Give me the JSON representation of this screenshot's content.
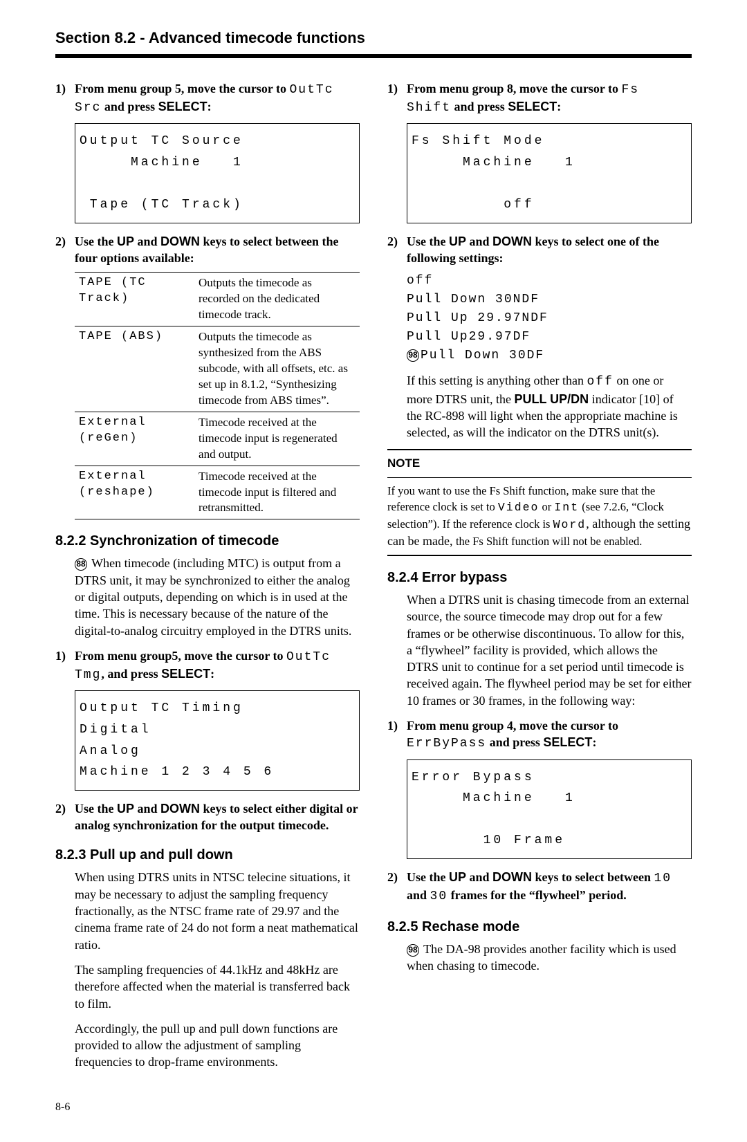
{
  "header": "Section 8.2 - Advanced timecode functions",
  "left": {
    "step1": {
      "num": "1)",
      "text_a": "From menu group 5, move the cursor to ",
      "mono": "OutTc Src",
      "text_b": " and press ",
      "sans": "SELECT",
      "text_c": ":"
    },
    "lcd1": "Output TC Source\n     Machine   1\n\n Tape (TC Track)",
    "step2": {
      "num": "2)",
      "text_a": "Use the ",
      "sans1": "UP",
      "text_b": " and ",
      "sans2": "DOWN",
      "text_c": " keys to select between the four options available:"
    },
    "opts": [
      {
        "label": "TAPE (TC Track)",
        "desc": "Outputs the timecode as recorded on the dedicated timecode track."
      },
      {
        "label": "TAPE (ABS)",
        "desc": "Outputs the timecode as synthesized from the ABS subcode, with all offsets, etc. as set up in 8.1.2, “Synthesizing timecode from ABS times”."
      },
      {
        "label": "External (reGen)",
        "desc": "Timecode received at the timecode input is regenerated and output."
      },
      {
        "label": "External (reshape)",
        "desc": "Timecode received at the timecode input is filtered and retransmitted."
      }
    ],
    "sub822": "8.2.2  Synchronization of timecode",
    "badge88": "88",
    "p822": " When timecode (including MTC) is output from a DTRS unit, it may be synchronized to either the analog or digital outputs, depending on which is in used at the time. This is necessary because of the nature of the digital-to-analog circuitry employed in the DTRS units.",
    "step3": {
      "num": "1)",
      "text_a": "From menu group5, move the cursor to ",
      "mono": "OutTc Tmg",
      "text_b": ", and press ",
      "sans": "SELECT",
      "text_c": ":"
    },
    "lcd2": "Output TC Timing\nDigital\nAnalog\nMachine 1 2 3 4 5 6",
    "step4": {
      "num": "2)",
      "text_a": "Use the ",
      "sans1": "UP",
      "text_b": " and ",
      "sans2": "DOWN",
      "text_c": " keys to select either digital or analog synchronization for the output timecode."
    },
    "sub823": "8.2.3  Pull up and pull down",
    "p823a": "When using DTRS units in NTSC telecine situations, it may be necessary to adjust the sampling frequency fractionally, as the NTSC frame rate of 29.97 and the cinema frame rate of 24 do not form a neat mathematical ratio.",
    "p823b": "The sampling frequencies of 44.1kHz and 48kHz are therefore affected when the material is transferred back to film.",
    "p823c": "Accordingly, the pull up and pull down functions are provided to allow the adjustment of sampling frequencies to drop-frame environments."
  },
  "right": {
    "step1": {
      "num": "1)",
      "text_a": "From menu group 8, move the cursor to ",
      "mono": "Fs Shift",
      "text_b": " and press ",
      "sans": "SELECT",
      "text_c": ":"
    },
    "lcd1": "Fs Shift Mode\n     Machine   1\n\n         off",
    "step2": {
      "num": "2)",
      "text_a": "Use the ",
      "sans1": "UP",
      "text_b": " and ",
      "sans2": "DOWN",
      "text_c": " keys to select one of the following settings:"
    },
    "settings_a": "off\nPull Down 30NDF\nPull Up 29.97NDF\nPull Up29.97DF",
    "badge98": "98",
    "settings_b": "Pull Down 30DF",
    "p_after_a": "If this setting is anything other than ",
    "mono_off": "off",
    "p_after_b": " on one or more DTRS unit, the ",
    "sans_pull": "PULL UP/DN",
    "p_after_c": " indicator [10] of the RC-898 will light when the appropriate machine is selected, as will the indicator on the DTRS unit(s).",
    "note_head": "NOTE",
    "note_a": "If you want to use the Fs Shift function, make sure that the reference clock is set to ",
    "note_mono1": "Video",
    "note_b": " or ",
    "note_mono2": "Int",
    "note_c": " (see 7.2.6, “Clock selection”). If the reference clock is ",
    "note_mono3": "Word",
    "note_larger": ", although the setting can be made, ",
    "note_d": "the Fs Shift function will not be enabled.",
    "sub824": "8.2.4  Error bypass",
    "p824": "When a DTRS unit is chasing timecode from an external source, the source timecode may drop out for a few frames or be otherwise discontinuous. To allow for this, a “flywheel” facility is provided, which allows the DTRS unit to continue for a set period until timecode is received again. The flywheel period may be set for either 10 frames or 30 frames, in the following way:",
    "step3": {
      "num": "1)",
      "text_a": "From menu group 4, move the cursor to ",
      "mono": "ErrByPass",
      "text_b": " and press ",
      "sans": "SELECT",
      "text_c": ":"
    },
    "lcd2": "Error Bypass\n     Machine   1\n\n       10 Frame",
    "step4": {
      "num": "2)",
      "text_a": "Use the ",
      "sans1": "UP",
      "text_b": " and ",
      "sans2": "DOWN",
      "text_c": " keys to select between ",
      "mono1": "10",
      "text_d": " and ",
      "mono2": "30",
      "text_e": " frames for the “flywheel” period."
    },
    "sub825": "8.2.5  Rechase mode",
    "badge98b": "98",
    "p825": " The DA-98 provides another facility which is used when chasing to timecode."
  },
  "pagenum": "8-6"
}
